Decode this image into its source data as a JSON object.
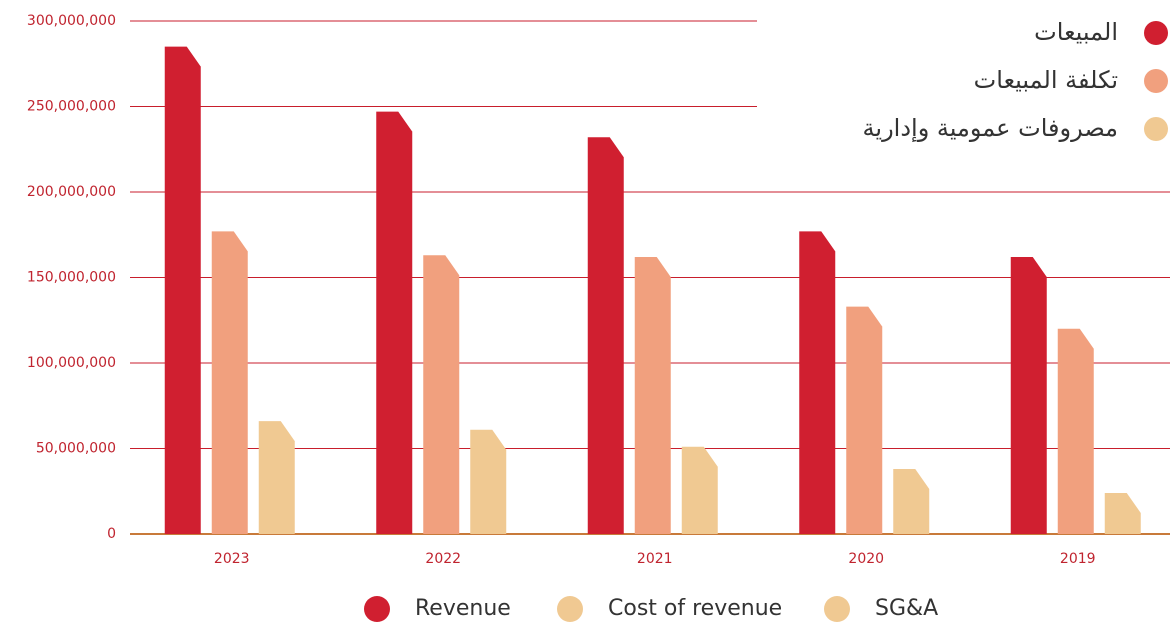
{
  "chart_data": {
    "type": "bar",
    "categories": [
      "2023",
      "2022",
      "2021",
      "2020",
      "2019"
    ],
    "series": [
      {
        "name": "Revenue",
        "color": "#d01f30",
        "values": [
          285000000,
          247000000,
          232000000,
          177000000,
          162000000
        ]
      },
      {
        "name": "Cost of revenue",
        "color": "#f1a07e",
        "values": [
          177000000,
          163000000,
          162000000,
          133000000,
          120000000
        ]
      },
      {
        "name": "SG&A",
        "color": "#f0c992",
        "values": [
          66000000,
          61000000,
          51000000,
          38000000,
          24000000
        ]
      }
    ],
    "legend_ar": [
      "المبيعات",
      "تكلفة المبيعات",
      "مصروفات عمومية وإدارية"
    ],
    "ylim": [
      0,
      300000000
    ],
    "yticks": [
      {
        "value": 0,
        "label": "0"
      },
      {
        "value": 50000000,
        "label": "50,000,000"
      },
      {
        "value": 100000000,
        "label": "100,000,000"
      },
      {
        "value": 150000000,
        "label": "150,000,000"
      },
      {
        "value": 200000000,
        "label": "200,000,000"
      },
      {
        "value": 250000000,
        "label": "250,000,000"
      },
      {
        "value": 300000000,
        "label": "300,000,000"
      }
    ],
    "grid": true
  }
}
